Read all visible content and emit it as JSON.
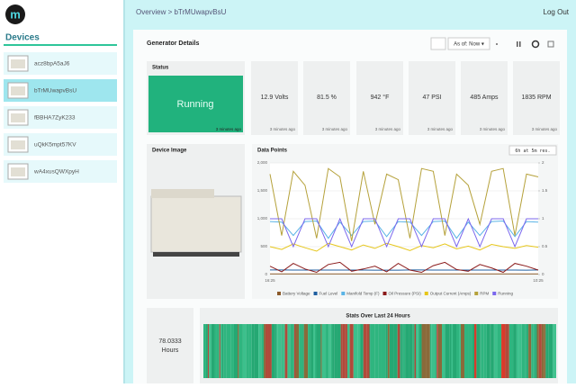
{
  "sidebar": {
    "logo": "m",
    "title": "Devices",
    "selected": 1,
    "devices": [
      "acz8bpA5aJ6",
      "bTrMUwapvBsU",
      "fBBHA7ZyK233",
      "uQkK5mpt57KV",
      "wA4xusQWXpyH"
    ]
  },
  "header": {
    "breadcrumb": "Overview > bTrMUwapvBsU",
    "logout": "Log Out"
  },
  "panel": {
    "title": "Generator Details",
    "as_of": "As of: Now ▾"
  },
  "status": {
    "title": "Status",
    "value": "Running",
    "updated": "3 minutes ago"
  },
  "metrics": [
    {
      "value": "12.9 Volts",
      "updated": "3 minutes ago"
    },
    {
      "value": "81.5 %",
      "updated": "3 minutes ago"
    },
    {
      "value": "942 °F",
      "updated": "3 minutes ago"
    },
    {
      "value": "47 PSI",
      "updated": "3 minutes ago"
    },
    {
      "value": "485 Amps",
      "updated": "3 minutes ago"
    },
    {
      "value": "1835 RPM",
      "updated": "3 minutes ago"
    }
  ],
  "device_image": {
    "title": "Device Image"
  },
  "chart_data": {
    "type": "line",
    "title": "Data Points",
    "resolution": "6h at 5m res.",
    "grid": true,
    "categories": [
      "16:25",
      null,
      null,
      null,
      null,
      null,
      null,
      null,
      null,
      null,
      null,
      null,
      null,
      null,
      null,
      null,
      null,
      null,
      null,
      null,
      null,
      null,
      null,
      "10:25"
    ],
    "ylim": [
      0,
      2000
    ],
    "yticks": [
      0,
      500,
      {
        "value": 1000,
        "label": "1,000"
      },
      {
        "value": 1500,
        "label": "1,500"
      },
      {
        "value": 2000,
        "label": "2,000"
      }
    ],
    "y2lim": [
      0,
      2
    ],
    "y2ticks": [
      0,
      0.5,
      1,
      1.5,
      2
    ],
    "series": [
      {
        "name": "Battery Voltage",
        "color": "#8b5a2b",
        "values": [
          13,
          13,
          12.9,
          13,
          13,
          12.9,
          13,
          13,
          12.9,
          13,
          13,
          12.9,
          13,
          13,
          12.9,
          13,
          13,
          12.9,
          13,
          13,
          12.9,
          13,
          13,
          12.9
        ]
      },
      {
        "name": "Fuel Level",
        "color": "#1f5fa0",
        "values": [
          82,
          82,
          81,
          81,
          81,
          80,
          80,
          80,
          80,
          79,
          79,
          79,
          82,
          82,
          81,
          81,
          81,
          81,
          80,
          80,
          80,
          80,
          79,
          82
        ]
      },
      {
        "name": "Manifold Temp (F)",
        "color": "#5ab4e6",
        "values": [
          950,
          940,
          700,
          950,
          960,
          650,
          940,
          700,
          950,
          960,
          680,
          950,
          940,
          700,
          950,
          960,
          650,
          940,
          700,
          950,
          960,
          680,
          950,
          940
        ]
      },
      {
        "name": "Oil Pressure (PSI)",
        "color": "#8b1a1a",
        "values": [
          150,
          50,
          200,
          100,
          40,
          180,
          220,
          60,
          100,
          150,
          50,
          200,
          80,
          40,
          160,
          220,
          90,
          60,
          180,
          120,
          40,
          200,
          150,
          80
        ]
      },
      {
        "name": "Output Current (Amps)",
        "color": "#e6c619",
        "values": [
          500,
          450,
          550,
          480,
          420,
          560,
          500,
          440,
          530,
          470,
          560,
          500,
          430,
          520,
          480,
          550,
          460,
          510,
          440,
          540,
          500,
          470,
          520,
          490
        ]
      },
      {
        "name": "RPM",
        "color": "#b5a13a",
        "values": [
          1800,
          700,
          1850,
          1600,
          650,
          1900,
          1750,
          600,
          1850,
          900,
          1800,
          1700,
          650,
          1900,
          1850,
          700,
          1800,
          1600,
          900,
          1850,
          1900,
          700,
          1800,
          1750
        ]
      },
      {
        "name": "Running",
        "color": "#7b68ee",
        "axis": "y2",
        "values": [
          1,
          1,
          0.5,
          1,
          1,
          0.5,
          1,
          0.5,
          1,
          1,
          0.5,
          1,
          1,
          0.5,
          1,
          1,
          0.5,
          1,
          0.5,
          1,
          1,
          0.5,
          1,
          1
        ]
      }
    ]
  },
  "stats": {
    "title": "Stats Over Last 24 Hours",
    "total": "78.0333",
    "unit": "Hours"
  }
}
